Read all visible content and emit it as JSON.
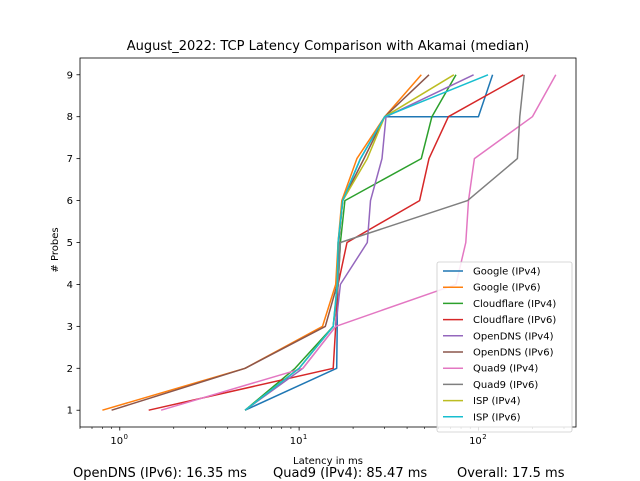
{
  "chart_data": {
    "type": "line",
    "title": "August_2022: TCP Latency Comparison with Akamai (median)",
    "xlabel": "Latency in ms",
    "ylabel": "# Probes",
    "xscale": "log",
    "xlim": [
      0.6,
      350
    ],
    "ylim": [
      0.6,
      9.4
    ],
    "xticks": [
      {
        "value": 1,
        "base": "10",
        "exp": "0"
      },
      {
        "value": 10,
        "base": "10",
        "exp": "1"
      },
      {
        "value": 100,
        "base": "10",
        "exp": "2"
      }
    ],
    "yticks": [
      1,
      2,
      3,
      4,
      5,
      6,
      7,
      8,
      9
    ],
    "grid": false,
    "legend_position": "lower-right",
    "series": [
      {
        "name": "Google (IPv4)",
        "color": "#1f77b4",
        "points": [
          [
            5,
            1
          ],
          [
            16.2,
            2
          ],
          [
            16.3,
            3
          ],
          [
            16.4,
            4
          ],
          [
            16.6,
            5
          ],
          [
            17.5,
            6
          ],
          [
            22,
            7
          ],
          [
            30,
            8
          ],
          [
            100,
            8
          ],
          [
            120,
            9
          ]
        ]
      },
      {
        "name": "Google (IPv6)",
        "color": "#ff7f0e",
        "points": [
          [
            0.8,
            1
          ],
          [
            5,
            2
          ],
          [
            13.5,
            3
          ],
          [
            16,
            4
          ],
          [
            16.5,
            5
          ],
          [
            17.3,
            6
          ],
          [
            21,
            7
          ],
          [
            30,
            8
          ],
          [
            48,
            9
          ]
        ]
      },
      {
        "name": "Cloudflare (IPv4)",
        "color": "#2ca02c",
        "points": [
          [
            5,
            1
          ],
          [
            9.5,
            2
          ],
          [
            15.5,
            3
          ],
          [
            16.5,
            4
          ],
          [
            17,
            5
          ],
          [
            18,
            6
          ],
          [
            48,
            7
          ],
          [
            55,
            8
          ],
          [
            75,
            9
          ]
        ]
      },
      {
        "name": "Cloudflare (IPv6)",
        "color": "#d62728",
        "points": [
          [
            1.45,
            1
          ],
          [
            15.5,
            2
          ],
          [
            16,
            3
          ],
          [
            16.5,
            4
          ],
          [
            18.5,
            5
          ],
          [
            47,
            6
          ],
          [
            53,
            7
          ],
          [
            68,
            8
          ],
          [
            178,
            9
          ]
        ]
      },
      {
        "name": "OpenDNS (IPv4)",
        "color": "#9467bd",
        "points": [
          [
            5,
            1
          ],
          [
            10.5,
            2
          ],
          [
            16,
            3
          ],
          [
            17,
            4
          ],
          [
            24,
            5
          ],
          [
            25,
            6
          ],
          [
            29,
            7
          ],
          [
            30.5,
            8
          ],
          [
            94,
            9
          ]
        ]
      },
      {
        "name": "OpenDNS (IPv6)",
        "color": "#8c564b",
        "points": [
          [
            0.9,
            1
          ],
          [
            5,
            2
          ],
          [
            14,
            3
          ],
          [
            16.3,
            4
          ],
          [
            16.6,
            5
          ],
          [
            17.5,
            6
          ],
          [
            23,
            7
          ],
          [
            30,
            8
          ],
          [
            53,
            9
          ]
        ]
      },
      {
        "name": "Quad9 (IPv4)",
        "color": "#e377c2",
        "points": [
          [
            1.7,
            1
          ],
          [
            10.5,
            2
          ],
          [
            16,
            3
          ],
          [
            75,
            4
          ],
          [
            85,
            5
          ],
          [
            88,
            6
          ],
          [
            95,
            7
          ],
          [
            200,
            8
          ],
          [
            270,
            9
          ]
        ]
      },
      {
        "name": "Quad9 (IPv6)",
        "color": "#7f7f7f",
        "points": [
          [
            5,
            1
          ],
          [
            10,
            2
          ],
          [
            15.5,
            3
          ],
          [
            16.5,
            4
          ],
          [
            17,
            5
          ],
          [
            87,
            6
          ],
          [
            165,
            7
          ],
          [
            170,
            8
          ],
          [
            180,
            9
          ]
        ]
      },
      {
        "name": "ISP (IPv4)",
        "color": "#bcbd22",
        "points": [
          [
            5,
            1
          ],
          [
            10,
            2
          ],
          [
            15.5,
            3
          ],
          [
            16.3,
            4
          ],
          [
            16.5,
            5
          ],
          [
            17.5,
            6
          ],
          [
            24,
            7
          ],
          [
            30,
            8
          ],
          [
            73,
            9
          ]
        ]
      },
      {
        "name": "ISP (IPv6)",
        "color": "#17becf",
        "points": [
          [
            5,
            1
          ],
          [
            10,
            2
          ],
          [
            15.5,
            3
          ],
          [
            16.3,
            4
          ],
          [
            16.5,
            5
          ],
          [
            17.5,
            6
          ],
          [
            22,
            7
          ],
          [
            30,
            8
          ],
          [
            113,
            9
          ]
        ]
      }
    ]
  },
  "footer": {
    "stat1": "OpenDNS (IPv6): 16.35 ms",
    "stat2": "Quad9 (IPv4): 85.47 ms",
    "stat3": "Overall: 17.5 ms"
  }
}
